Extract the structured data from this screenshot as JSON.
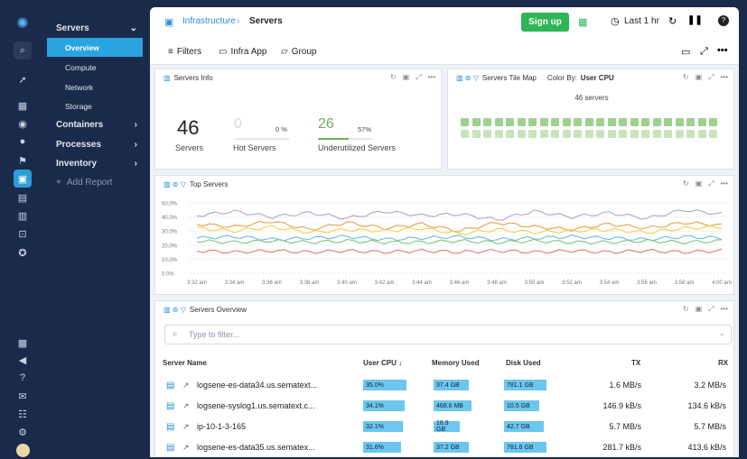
{
  "nav": {
    "servers": "Servers",
    "overview": "Overview",
    "compute": "Compute",
    "network": "Network",
    "storage": "Storage",
    "containers": "Containers",
    "processes": "Processes",
    "inventory": "Inventory",
    "add_report": "Add Report"
  },
  "header": {
    "crumb_root": "Infrastructure",
    "crumb_current": "Servers",
    "sign_up": "Sign up",
    "time_range": "Last 1 hr"
  },
  "toolbar": {
    "filters": "Filters",
    "infra_app": "Infra App",
    "group": "Group"
  },
  "servers_info": {
    "title": "Servers Info",
    "servers_count": "46",
    "servers_label": "Servers",
    "hot_count": "0",
    "hot_pct": "0 %",
    "hot_label": "Hot Servers",
    "under_count": "26",
    "under_pct": "57%",
    "under_label": "Underutilized Servers"
  },
  "tile_map": {
    "title": "Servers Tile Map",
    "color_by_label": "Color By:",
    "color_by_value": "User CPU",
    "count_label": "46 servers"
  },
  "top_servers": {
    "title": "Top Servers"
  },
  "chart_data": {
    "type": "line",
    "title": "",
    "yticks": [
      "50.0%",
      "40.0%",
      "30.0%",
      "20.0%",
      "10.0%",
      "0.0%"
    ],
    "ylim": [
      0,
      50
    ],
    "x": [
      "3:32 am",
      "3:34 am",
      "3:36 am",
      "3:38 am",
      "3:40 am",
      "3:42 am",
      "3:44 am",
      "3:46 am",
      "3:48 am",
      "3:50 am",
      "3:52 am",
      "3:54 am",
      "3:56 am",
      "3:58 am",
      "4:00 am"
    ],
    "series": [
      {
        "color": "#b6a0cf",
        "values": [
          41,
          44,
          40,
          43,
          39,
          44,
          41,
          42,
          38,
          44,
          40,
          43,
          39,
          45,
          42
        ]
      },
      {
        "color": "#e8a04a",
        "values": [
          35,
          33,
          37,
          31,
          36,
          32,
          35,
          30,
          36,
          33,
          31,
          35,
          32,
          36,
          34
        ]
      },
      {
        "color": "#f2cf4a",
        "values": [
          32,
          30,
          33,
          29,
          31,
          30,
          32,
          28,
          31,
          29,
          30,
          31,
          29,
          32,
          33
        ]
      },
      {
        "color": "#6bbcd6",
        "values": [
          25,
          26,
          24,
          25,
          26,
          24,
          25,
          26,
          24,
          25,
          26,
          25,
          24,
          26,
          25
        ]
      },
      {
        "color": "#7dc47a",
        "values": [
          23,
          22,
          23,
          22,
          23,
          22,
          22,
          23,
          22,
          23,
          22,
          22,
          23,
          22,
          23
        ]
      },
      {
        "color": "#e07a6a",
        "values": [
          16,
          15,
          16,
          15,
          16,
          15,
          16,
          15,
          16,
          15,
          16,
          15,
          16,
          15,
          16
        ]
      }
    ]
  },
  "overview": {
    "title": "Servers Overview",
    "filter_placeholder": "Type to filter...",
    "columns": {
      "name": "Server Name",
      "cpu": "User CPU ↓",
      "mem": "Memory Used",
      "disk": "Disk Used",
      "tx": "TX",
      "rx": "RX"
    },
    "rows": [
      {
        "name": "logsene-es-data34.us.sematext...",
        "cpu": "35.0%",
        "cpu_frac": 0.7,
        "mem": "37.4 GB",
        "mem_frac": 0.75,
        "disk": "781.1 GB",
        "disk_frac": 0.9,
        "tx": "1.6 MB/s",
        "rx": "3.2 MB/s"
      },
      {
        "name": "logsene-syslog1.us.sematext.c...",
        "cpu": "34.1%",
        "cpu_frac": 0.68,
        "mem": "468.6 MB",
        "mem_frac": 0.8,
        "disk": "10.5 GB",
        "disk_frac": 0.75,
        "tx": "146.9 kB/s",
        "rx": "134.6 kB/s"
      },
      {
        "name": "ip-10-1-3-165",
        "cpu": "32.1%",
        "cpu_frac": 0.64,
        "mem": "16.9 GB",
        "mem_frac": 0.55,
        "disk": "42.7 GB",
        "disk_frac": 0.85,
        "tx": "5.7 MB/s",
        "rx": "5.7 MB/s"
      },
      {
        "name": "logsene-es-data35.us.sematex...",
        "cpu": "31.6%",
        "cpu_frac": 0.62,
        "mem": "37.2 GB",
        "mem_frac": 0.75,
        "disk": "781.6 GB",
        "disk_frac": 0.9,
        "tx": "281.7 kB/s",
        "rx": "413.6 kB/s"
      }
    ]
  },
  "colors": {
    "accent": "#2aa4de",
    "signup": "#2fb457",
    "tile_green": "#9fd08f",
    "tile_light": "#c9e4bd"
  }
}
